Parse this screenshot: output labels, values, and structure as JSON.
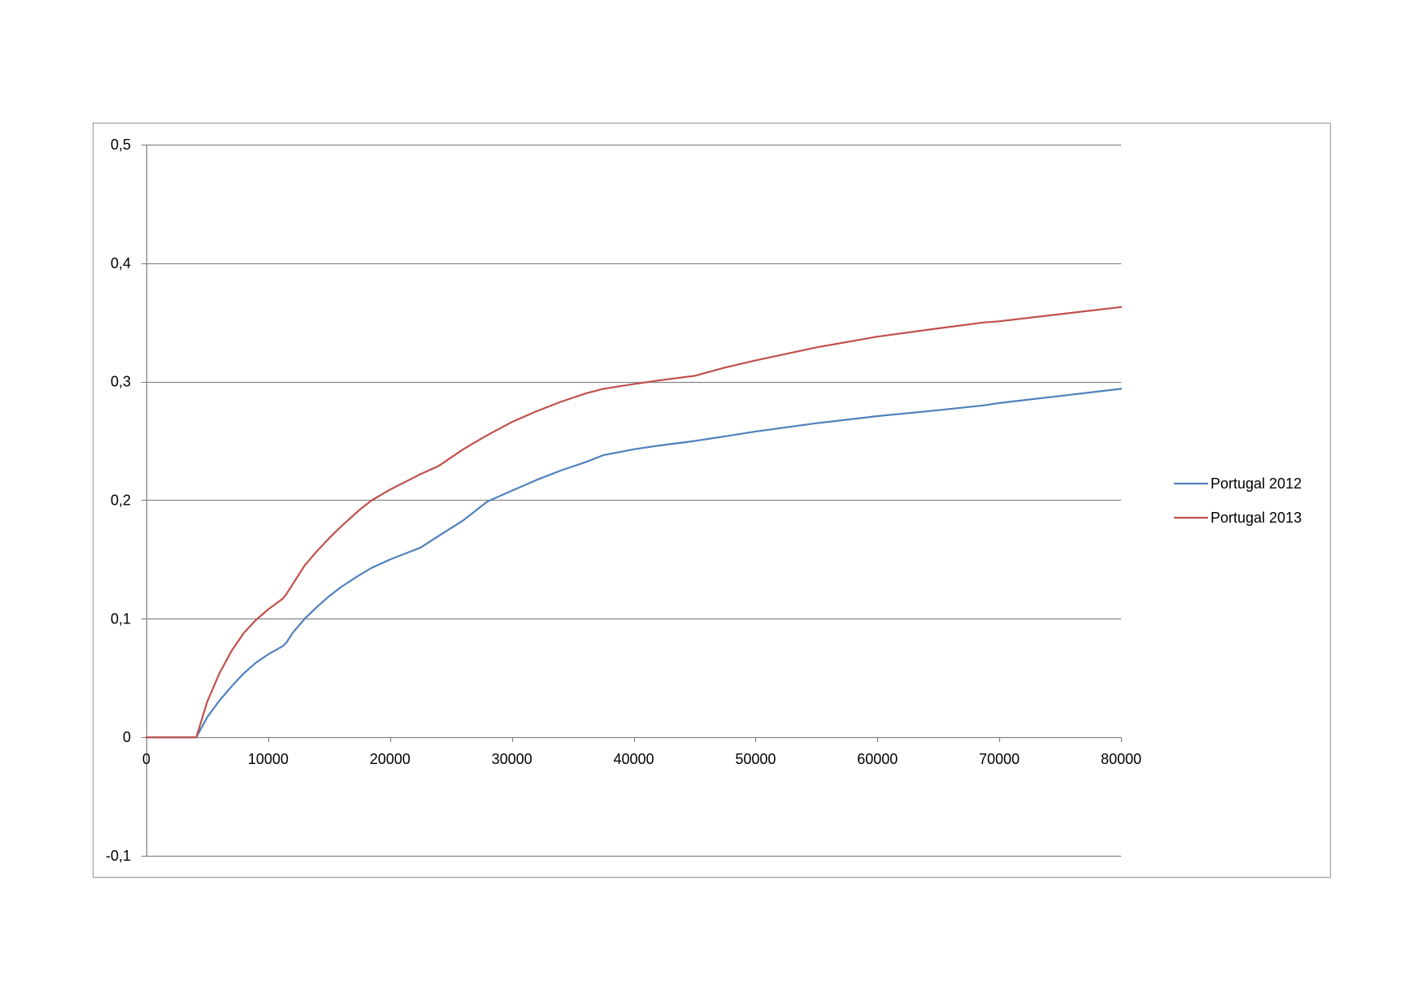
{
  "chart_data": {
    "type": "line",
    "xlim": [
      0,
      80000
    ],
    "ylim": [
      -0.1,
      0.5
    ],
    "x_ticks": [
      0,
      10000,
      20000,
      30000,
      40000,
      50000,
      60000,
      70000,
      80000
    ],
    "x_tick_labels": [
      "0",
      "10000",
      "20000",
      "30000",
      "40000",
      "50000",
      "60000",
      "70000",
      "80000"
    ],
    "y_ticks": [
      -0.1,
      0,
      0.1,
      0.2,
      0.3,
      0.4,
      0.5
    ],
    "y_tick_labels": [
      "-0,1",
      "0",
      "0,1",
      "0,2",
      "0,3",
      "0,4",
      "0,5"
    ],
    "grid": true,
    "legend_position": "right",
    "x": [
      0,
      4100,
      5000,
      6000,
      7000,
      8000,
      9000,
      10000,
      11200,
      11500,
      12000,
      13000,
      14000,
      15000,
      16000,
      17500,
      18500,
      20000,
      22500,
      24000,
      26000,
      28000,
      30000,
      32000,
      34000,
      36000,
      37500,
      40000,
      42000,
      45000,
      47500,
      50000,
      55000,
      60000,
      65000,
      68700,
      70000,
      75000,
      80000
    ],
    "series": [
      {
        "name": "Portugal 2012",
        "color": "#4f81bd",
        "values": [
          0,
          0,
          0.017,
          0.031,
          0.043,
          0.054,
          0.063,
          0.07,
          0.077,
          0.08,
          0.088,
          0.1,
          0.11,
          0.119,
          0.127,
          0.137,
          0.143,
          0.15,
          0.16,
          0.17,
          0.183,
          0.199,
          0.208,
          0.217,
          0.225,
          0.232,
          0.238,
          0.243,
          0.246,
          0.25,
          0.254,
          0.258,
          0.265,
          0.271,
          0.276,
          0.28,
          0.282,
          0.288,
          0.294
        ]
      },
      {
        "name": "Portugal 2013",
        "color": "#c0504d",
        "values": [
          0,
          0,
          0.03,
          0.054,
          0.073,
          0.088,
          0.099,
          0.108,
          0.117,
          0.121,
          0.129,
          0.145,
          0.157,
          0.168,
          0.178,
          0.192,
          0.2,
          0.209,
          0.222,
          0.229,
          0.243,
          0.255,
          0.266,
          0.275,
          0.283,
          0.29,
          0.294,
          0.298,
          0.301,
          0.305,
          0.312,
          0.318,
          0.329,
          0.338,
          0.345,
          0.35,
          0.351,
          0.357,
          0.363
        ]
      }
    ]
  }
}
